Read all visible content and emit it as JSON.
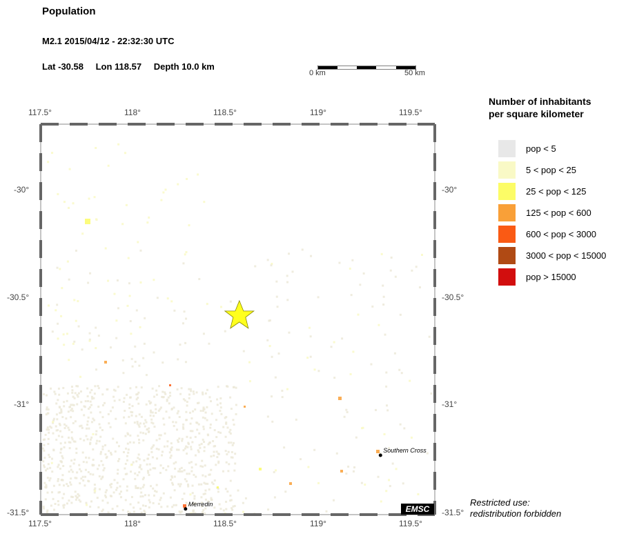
{
  "header": {
    "title": "Population",
    "event": "M2.1  2015/04/12 - 22:32:30 UTC",
    "lat": "Lat -30.58",
    "lon": "Lon 118.57",
    "depth": "Depth  10.0 km"
  },
  "scalebar": {
    "start_label": "0 km",
    "end_label": "50 km"
  },
  "map": {
    "lon_range": [
      117.5,
      119.6
    ],
    "lat_range": [
      -31.5,
      -29.7
    ],
    "lon_ticks": [
      "117.5°",
      "118°",
      "118.5°",
      "119°",
      "119.5°"
    ],
    "lat_ticks": [
      "-30°",
      "-30.5°",
      "-31°",
      "-31.5°"
    ],
    "epicenter": {
      "lon": 118.57,
      "lat": -30.58,
      "color": "#ffff00"
    },
    "towns": [
      {
        "name": "Merredin",
        "lon": 118.28,
        "lat": -31.48
      },
      {
        "name": "Southern Cross",
        "lon": 119.33,
        "lat": -31.23
      }
    ],
    "emsc_label": "EMSC"
  },
  "legend": {
    "title_line1": "Number of inhabitants",
    "title_line2": "per square kilometer",
    "items": [
      {
        "label": "pop < 5",
        "color": "#e8e8e8"
      },
      {
        "label": "5 < pop < 25",
        "color": "#f9f9c6"
      },
      {
        "label": "25 < pop < 125",
        "color": "#fcfc66"
      },
      {
        "label": "125 < pop < 600",
        "color": "#f9a038"
      },
      {
        "label": "600 < pop < 3000",
        "color": "#fa5a14"
      },
      {
        "label": "3000 < pop < 15000",
        "color": "#b04a14"
      },
      {
        "label": "pop > 15000",
        "color": "#d20e0e"
      }
    ]
  },
  "notice": {
    "line1": "Restricted use:",
    "line2": "redistribution forbidden"
  }
}
